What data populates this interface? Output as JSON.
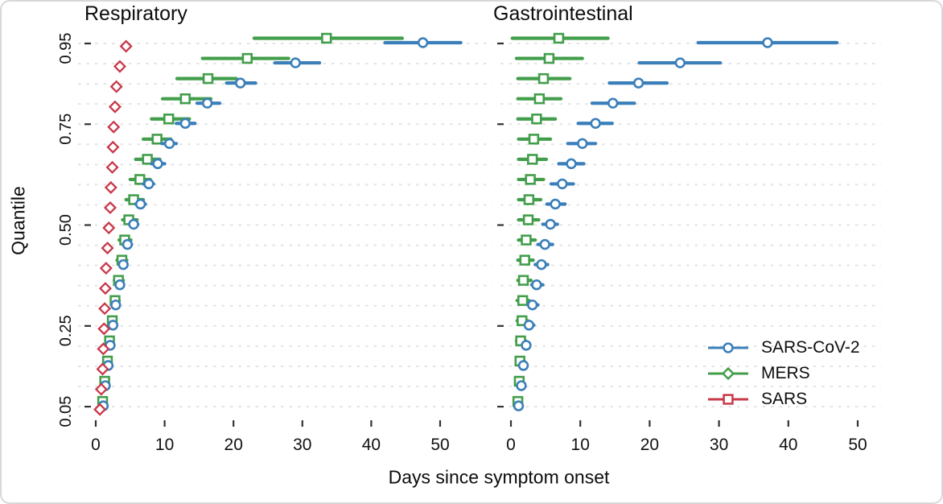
{
  "chart_data": {
    "type": "scatter",
    "subtype": "quantile-dot-interval",
    "xlabel": "Days since symptom onset",
    "ylabel": "Quantile",
    "x_ticks": [
      0,
      10,
      20,
      30,
      40,
      50
    ],
    "xlim": [
      0,
      50
    ],
    "y_tick_labels": [
      "0.95",
      "0.75",
      "0.50",
      "0.25",
      "0.05"
    ],
    "grid": "dashed-horizontal-per-quantile",
    "legend_position": "bottom-right",
    "quantiles": [
      0.95,
      0.9,
      0.85,
      0.8,
      0.75,
      0.7,
      0.65,
      0.6,
      0.55,
      0.5,
      0.45,
      0.4,
      0.35,
      0.3,
      0.25,
      0.2,
      0.15,
      0.1,
      0.05
    ],
    "series_meta": [
      {
        "name": "SARS-CoV-2",
        "color": "#3b7fba",
        "legend_marker": "circle",
        "plot_marker": "circle"
      },
      {
        "name": "MERS",
        "color": "#429e4b",
        "legend_marker": "diamond",
        "plot_marker": "square"
      },
      {
        "name": "SARS",
        "color": "#c8394a",
        "legend_marker": "square",
        "plot_marker": "diamond"
      }
    ],
    "panels": [
      {
        "title": "Respiratory",
        "series": [
          {
            "name": "SARS-CoV-2",
            "points": [
              [
                47.5,
                42,
                53
              ],
              [
                29,
                26,
                32.5
              ],
              [
                21,
                19,
                23.2
              ],
              [
                16.2,
                14.7,
                18
              ],
              [
                13,
                11.7,
                14.4
              ],
              [
                10.7,
                9.6,
                11.7
              ],
              [
                9,
                8.1,
                10
              ],
              [
                7.7,
                6.9,
                8.4
              ],
              [
                6.5,
                5.8,
                7.2
              ],
              [
                5.5,
                4.9,
                6.1
              ],
              [
                4.6,
                4.1,
                5.2
              ],
              [
                4,
                3.6,
                4.5
              ],
              [
                3.5,
                3.1,
                3.9
              ],
              [
                2.9,
                2.6,
                3.3
              ],
              [
                2.5,
                2.2,
                2.8
              ],
              [
                2.1,
                1.8,
                2.4
              ],
              [
                1.8,
                1.5,
                2
              ],
              [
                1.4,
                1.2,
                1.6
              ],
              [
                1.1,
                0.9,
                1.3
              ]
            ]
          },
          {
            "name": "MERS",
            "points": [
              [
                33.5,
                23,
                44.5
              ],
              [
                22,
                15.5,
                28
              ],
              [
                16.3,
                11.8,
                20.4
              ],
              [
                13,
                9.7,
                16.7
              ],
              [
                10.6,
                8.1,
                13.6
              ],
              [
                8.9,
                6.9,
                10.9
              ],
              [
                7.5,
                5.8,
                9.3
              ],
              [
                6.4,
                5,
                7.9
              ],
              [
                5.5,
                4.4,
                6.9
              ],
              [
                4.8,
                3.9,
                6
              ],
              [
                4.2,
                3.4,
                5.1
              ],
              [
                3.8,
                3.1,
                4.5
              ],
              [
                3.3,
                2.7,
                4
              ],
              [
                2.8,
                2.3,
                3.4
              ],
              [
                2.4,
                2,
                2.9
              ],
              [
                2,
                1.6,
                2.4
              ],
              [
                1.7,
                1.3,
                2
              ],
              [
                1.3,
                1,
                1.6
              ],
              [
                1,
                0.8,
                1.3
              ]
            ]
          },
          {
            "name": "SARS",
            "points": [
              [
                4.4,
                null,
                null
              ],
              [
                3.5,
                null,
                null
              ],
              [
                3,
                null,
                null
              ],
              [
                2.8,
                null,
                null
              ],
              [
                2.6,
                null,
                null
              ],
              [
                2.5,
                null,
                null
              ],
              [
                2.4,
                null,
                null
              ],
              [
                2.2,
                null,
                null
              ],
              [
                2.1,
                null,
                null
              ],
              [
                1.9,
                null,
                null
              ],
              [
                1.7,
                null,
                null
              ],
              [
                1.5,
                null,
                null
              ],
              [
                1.4,
                null,
                null
              ],
              [
                1.3,
                null,
                null
              ],
              [
                1.2,
                null,
                null
              ],
              [
                1.1,
                null,
                null
              ],
              [
                1,
                null,
                null
              ],
              [
                0.8,
                null,
                null
              ],
              [
                0.6,
                null,
                null
              ]
            ]
          }
        ]
      },
      {
        "title": "Gastrointestinal",
        "series": [
          {
            "name": "SARS-CoV-2",
            "points": [
              [
                37,
                27,
                47
              ],
              [
                24.4,
                18.5,
                30.2
              ],
              [
                18.4,
                14.2,
                22.5
              ],
              [
                14.7,
                11.7,
                17.8
              ],
              [
                12.2,
                9.7,
                14.6
              ],
              [
                10.3,
                8.2,
                12.2
              ],
              [
                8.7,
                6.9,
                10.5
              ],
              [
                7.4,
                5.8,
                9
              ],
              [
                6.4,
                5.2,
                7.8
              ],
              [
                5.7,
                4.6,
                6.7
              ],
              [
                4.9,
                3.9,
                6
              ],
              [
                4.4,
                3.5,
                5.3
              ],
              [
                3.7,
                3,
                4.6
              ],
              [
                3.1,
                2.5,
                3.9
              ],
              [
                2.6,
                2.1,
                3.3
              ],
              [
                2.2,
                1.7,
                2.7
              ],
              [
                1.8,
                1.4,
                2.2
              ],
              [
                1.5,
                1.1,
                1.8
              ],
              [
                1.1,
                0.8,
                1.4
              ]
            ]
          },
          {
            "name": "MERS",
            "points": [
              [
                6.9,
                0.2,
                14
              ],
              [
                5.5,
                0.8,
                10.3
              ],
              [
                4.7,
                1,
                8.5
              ],
              [
                4.1,
                1,
                7.2
              ],
              [
                3.7,
                1,
                6.4
              ],
              [
                3.3,
                1.1,
                5.7
              ],
              [
                3.1,
                1.1,
                5.1
              ],
              [
                2.8,
                1.1,
                4.7
              ],
              [
                2.6,
                1.1,
                4.3
              ],
              [
                2.5,
                1.1,
                4
              ],
              [
                2.2,
                1.1,
                3.5
              ],
              [
                2,
                1,
                3.2
              ],
              [
                1.8,
                1,
                2.9
              ],
              [
                1.7,
                0.9,
                2.6
              ],
              [
                1.6,
                0.9,
                2.4
              ],
              [
                1.4,
                0.8,
                2.1
              ],
              [
                1.3,
                0.8,
                1.9
              ],
              [
                1.2,
                0.7,
                1.7
              ],
              [
                1,
                0.6,
                1.5
              ]
            ]
          },
          {
            "name": "SARS",
            "points": []
          }
        ]
      }
    ]
  },
  "style": {
    "grid_color": "#e4e4e4",
    "tick_color": "#333333",
    "text_color": "#111111",
    "marker_fill": "#ffffff"
  }
}
